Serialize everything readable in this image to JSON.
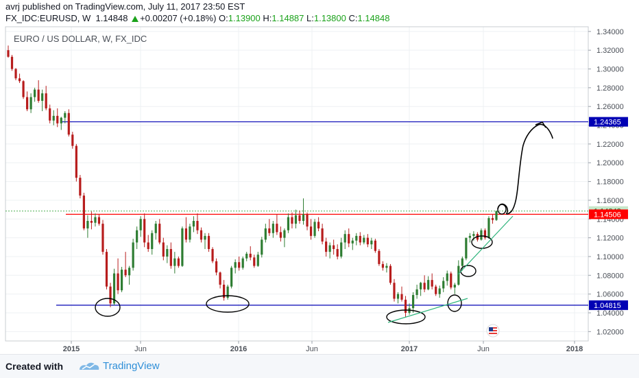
{
  "header": {
    "author": "avrj",
    "published_text": "published on TradingView.com, July 11, 2017 23:50 EST",
    "symbol": "FX_IDC:EURUSD, W",
    "last_price": "1.14848",
    "change": "+0.00207 (+0.18%)",
    "open_label": "O:",
    "open": "1.13900",
    "high_label": "H:",
    "high": "1.14887",
    "low_label": "L:",
    "low": "1.13800",
    "close_label": "C:",
    "close": "1.14848"
  },
  "footer": {
    "created_with": "Created with",
    "brand": "TradingView"
  },
  "chart_data": {
    "type": "candlestick",
    "title": "EURO / US DOLLAR, W, FX_IDC",
    "ylim": [
      1.01,
      1.345
    ],
    "y_ticks": [
      "1.34000",
      "1.32000",
      "1.30000",
      "1.28000",
      "1.26000",
      "1.24000",
      "1.22000",
      "1.20000",
      "1.18000",
      "1.16000",
      "1.14000",
      "1.12000",
      "1.10000",
      "1.08000",
      "1.06000",
      "1.04000",
      "1.02000"
    ],
    "x_ticks": [
      "2015",
      "Jun",
      "2016",
      "Jun",
      "2017",
      "Jun",
      "2018"
    ],
    "price_labels": [
      {
        "text": "1.24365",
        "value": 1.24365,
        "color": "#0000b4",
        "text_color": "#ffffff"
      },
      {
        "text": "1.14848",
        "value": 1.14848,
        "color": "#c8e6c9",
        "text_color": "#1b5e20"
      },
      {
        "text": "1.14506",
        "value": 1.14506,
        "color": "#ff0000",
        "text_color": "#ffffff"
      },
      {
        "text": "1.04815",
        "value": 1.04815,
        "color": "#0000b4",
        "text_color": "#ffffff"
      }
    ],
    "horizontal_lines": [
      {
        "value": 1.24365,
        "color": "#0000b4"
      },
      {
        "value": 1.14506,
        "color": "#ff0000"
      },
      {
        "value": 1.04815,
        "color": "#0000b4"
      }
    ],
    "colors": {
      "up": "#2e7d32",
      "down": "#b71c1c",
      "last_price_line": "#4caf50",
      "drawing": "#000000",
      "trendline": "#2bb37a"
    },
    "candles": [
      {
        "o": 1.32,
        "h": 1.325,
        "l": 1.312,
        "c": 1.313
      },
      {
        "o": 1.313,
        "h": 1.315,
        "l": 1.298,
        "c": 1.3
      },
      {
        "o": 1.3,
        "h": 1.301,
        "l": 1.288,
        "c": 1.29
      },
      {
        "o": 1.29,
        "h": 1.295,
        "l": 1.285,
        "c": 1.287
      },
      {
        "o": 1.287,
        "h": 1.288,
        "l": 1.268,
        "c": 1.27
      },
      {
        "o": 1.27,
        "h": 1.276,
        "l": 1.255,
        "c": 1.257
      },
      {
        "o": 1.257,
        "h": 1.274,
        "l": 1.253,
        "c": 1.27
      },
      {
        "o": 1.27,
        "h": 1.28,
        "l": 1.265,
        "c": 1.278
      },
      {
        "o": 1.278,
        "h": 1.288,
        "l": 1.264,
        "c": 1.266
      },
      {
        "o": 1.266,
        "h": 1.278,
        "l": 1.255,
        "c": 1.274
      },
      {
        "o": 1.274,
        "h": 1.282,
        "l": 1.256,
        "c": 1.258
      },
      {
        "o": 1.258,
        "h": 1.262,
        "l": 1.242,
        "c": 1.245
      },
      {
        "o": 1.245,
        "h": 1.256,
        "l": 1.24,
        "c": 1.25
      },
      {
        "o": 1.25,
        "h": 1.258,
        "l": 1.238,
        "c": 1.242
      },
      {
        "o": 1.242,
        "h": 1.249,
        "l": 1.235,
        "c": 1.248
      },
      {
        "o": 1.248,
        "h": 1.255,
        "l": 1.242,
        "c": 1.253
      },
      {
        "o": 1.253,
        "h": 1.257,
        "l": 1.228,
        "c": 1.23
      },
      {
        "o": 1.23,
        "h": 1.233,
        "l": 1.215,
        "c": 1.218
      },
      {
        "o": 1.218,
        "h": 1.22,
        "l": 1.18,
        "c": 1.184
      },
      {
        "o": 1.184,
        "h": 1.187,
        "l": 1.162,
        "c": 1.165
      },
      {
        "o": 1.165,
        "h": 1.168,
        "l": 1.128,
        "c": 1.13
      },
      {
        "o": 1.13,
        "h": 1.144,
        "l": 1.12,
        "c": 1.138
      },
      {
        "o": 1.138,
        "h": 1.148,
        "l": 1.129,
        "c": 1.136
      },
      {
        "o": 1.136,
        "h": 1.146,
        "l": 1.132,
        "c": 1.142
      },
      {
        "o": 1.142,
        "h": 1.145,
        "l": 1.133,
        "c": 1.135
      },
      {
        "o": 1.135,
        "h": 1.139,
        "l": 1.102,
        "c": 1.105
      },
      {
        "o": 1.105,
        "h": 1.108,
        "l": 1.065,
        "c": 1.068
      },
      {
        "o": 1.068,
        "h": 1.072,
        "l": 1.046,
        "c": 1.05
      },
      {
        "o": 1.05,
        "h": 1.087,
        "l": 1.048,
        "c": 1.082
      },
      {
        "o": 1.082,
        "h": 1.098,
        "l": 1.06,
        "c": 1.064
      },
      {
        "o": 1.064,
        "h": 1.089,
        "l": 1.062,
        "c": 1.086
      },
      {
        "o": 1.086,
        "h": 1.105,
        "l": 1.078,
        "c": 1.08
      },
      {
        "o": 1.08,
        "h": 1.09,
        "l": 1.07,
        "c": 1.088
      },
      {
        "o": 1.088,
        "h": 1.119,
        "l": 1.085,
        "c": 1.115
      },
      {
        "o": 1.115,
        "h": 1.132,
        "l": 1.108,
        "c": 1.128
      },
      {
        "o": 1.128,
        "h": 1.143,
        "l": 1.121,
        "c": 1.14
      },
      {
        "o": 1.14,
        "h": 1.146,
        "l": 1.11,
        "c": 1.115
      },
      {
        "o": 1.115,
        "h": 1.123,
        "l": 1.105,
        "c": 1.108
      },
      {
        "o": 1.108,
        "h": 1.128,
        "l": 1.102,
        "c": 1.125
      },
      {
        "o": 1.125,
        "h": 1.138,
        "l": 1.118,
        "c": 1.135
      },
      {
        "o": 1.135,
        "h": 1.14,
        "l": 1.113,
        "c": 1.115
      },
      {
        "o": 1.115,
        "h": 1.12,
        "l": 1.096,
        "c": 1.1
      },
      {
        "o": 1.1,
        "h": 1.112,
        "l": 1.093,
        "c": 1.108
      },
      {
        "o": 1.108,
        "h": 1.115,
        "l": 1.087,
        "c": 1.09
      },
      {
        "o": 1.09,
        "h": 1.105,
        "l": 1.082,
        "c": 1.098
      },
      {
        "o": 1.098,
        "h": 1.1,
        "l": 1.088,
        "c": 1.09
      },
      {
        "o": 1.09,
        "h": 1.132,
        "l": 1.089,
        "c": 1.13
      },
      {
        "o": 1.13,
        "h": 1.142,
        "l": 1.115,
        "c": 1.118
      },
      {
        "o": 1.118,
        "h": 1.135,
        "l": 1.115,
        "c": 1.132
      },
      {
        "o": 1.132,
        "h": 1.143,
        "l": 1.126,
        "c": 1.138
      },
      {
        "o": 1.138,
        "h": 1.146,
        "l": 1.124,
        "c": 1.128
      },
      {
        "o": 1.128,
        "h": 1.131,
        "l": 1.115,
        "c": 1.118
      },
      {
        "o": 1.118,
        "h": 1.125,
        "l": 1.108,
        "c": 1.122
      },
      {
        "o": 1.122,
        "h": 1.125,
        "l": 1.105,
        "c": 1.108
      },
      {
        "o": 1.108,
        "h": 1.11,
        "l": 1.093,
        "c": 1.095
      },
      {
        "o": 1.095,
        "h": 1.098,
        "l": 1.08,
        "c": 1.083
      },
      {
        "o": 1.083,
        "h": 1.084,
        "l": 1.066,
        "c": 1.07
      },
      {
        "o": 1.07,
        "h": 1.075,
        "l": 1.053,
        "c": 1.056
      },
      {
        "o": 1.056,
        "h": 1.07,
        "l": 1.054,
        "c": 1.068
      },
      {
        "o": 1.068,
        "h": 1.09,
        "l": 1.066,
        "c": 1.088
      },
      {
        "o": 1.088,
        "h": 1.097,
        "l": 1.082,
        "c": 1.094
      },
      {
        "o": 1.094,
        "h": 1.1,
        "l": 1.085,
        "c": 1.088
      },
      {
        "o": 1.088,
        "h": 1.1,
        "l": 1.086,
        "c": 1.098
      },
      {
        "o": 1.098,
        "h": 1.105,
        "l": 1.095,
        "c": 1.103
      },
      {
        "o": 1.103,
        "h": 1.111,
        "l": 1.096,
        "c": 1.099
      },
      {
        "o": 1.099,
        "h": 1.102,
        "l": 1.088,
        "c": 1.09
      },
      {
        "o": 1.09,
        "h": 1.105,
        "l": 1.089,
        "c": 1.102
      },
      {
        "o": 1.102,
        "h": 1.121,
        "l": 1.099,
        "c": 1.118
      },
      {
        "o": 1.118,
        "h": 1.135,
        "l": 1.115,
        "c": 1.13
      },
      {
        "o": 1.13,
        "h": 1.14,
        "l": 1.122,
        "c": 1.125
      },
      {
        "o": 1.125,
        "h": 1.138,
        "l": 1.12,
        "c": 1.135
      },
      {
        "o": 1.135,
        "h": 1.145,
        "l": 1.123,
        "c": 1.126
      },
      {
        "o": 1.126,
        "h": 1.132,
        "l": 1.116,
        "c": 1.12
      },
      {
        "o": 1.12,
        "h": 1.13,
        "l": 1.11,
        "c": 1.128
      },
      {
        "o": 1.128,
        "h": 1.146,
        "l": 1.125,
        "c": 1.142
      },
      {
        "o": 1.142,
        "h": 1.147,
        "l": 1.13,
        "c": 1.135
      },
      {
        "o": 1.135,
        "h": 1.15,
        "l": 1.13,
        "c": 1.144
      },
      {
        "o": 1.144,
        "h": 1.149,
        "l": 1.135,
        "c": 1.138
      },
      {
        "o": 1.138,
        "h": 1.162,
        "l": 1.134,
        "c": 1.145
      },
      {
        "o": 1.145,
        "h": 1.147,
        "l": 1.128,
        "c": 1.132
      },
      {
        "o": 1.132,
        "h": 1.14,
        "l": 1.118,
        "c": 1.122
      },
      {
        "o": 1.122,
        "h": 1.14,
        "l": 1.12,
        "c": 1.137
      },
      {
        "o": 1.137,
        "h": 1.142,
        "l": 1.127,
        "c": 1.13
      },
      {
        "o": 1.13,
        "h": 1.135,
        "l": 1.113,
        "c": 1.116
      },
      {
        "o": 1.116,
        "h": 1.12,
        "l": 1.1,
        "c": 1.105
      },
      {
        "o": 1.105,
        "h": 1.115,
        "l": 1.098,
        "c": 1.112
      },
      {
        "o": 1.112,
        "h": 1.118,
        "l": 1.102,
        "c": 1.108
      },
      {
        "o": 1.108,
        "h": 1.113,
        "l": 1.097,
        "c": 1.1
      },
      {
        "o": 1.1,
        "h": 1.12,
        "l": 1.098,
        "c": 1.115
      },
      {
        "o": 1.115,
        "h": 1.128,
        "l": 1.108,
        "c": 1.124
      },
      {
        "o": 1.124,
        "h": 1.13,
        "l": 1.11,
        "c": 1.114
      },
      {
        "o": 1.114,
        "h": 1.12,
        "l": 1.107,
        "c": 1.117
      },
      {
        "o": 1.117,
        "h": 1.125,
        "l": 1.112,
        "c": 1.122
      },
      {
        "o": 1.122,
        "h": 1.126,
        "l": 1.112,
        "c": 1.115
      },
      {
        "o": 1.115,
        "h": 1.123,
        "l": 1.113,
        "c": 1.12
      },
      {
        "o": 1.12,
        "h": 1.124,
        "l": 1.11,
        "c": 1.113
      },
      {
        "o": 1.113,
        "h": 1.12,
        "l": 1.108,
        "c": 1.117
      },
      {
        "o": 1.117,
        "h": 1.119,
        "l": 1.104,
        "c": 1.106
      },
      {
        "o": 1.106,
        "h": 1.108,
        "l": 1.09,
        "c": 1.092
      },
      {
        "o": 1.092,
        "h": 1.095,
        "l": 1.085,
        "c": 1.088
      },
      {
        "o": 1.088,
        "h": 1.093,
        "l": 1.083,
        "c": 1.09
      },
      {
        "o": 1.09,
        "h": 1.092,
        "l": 1.07,
        "c": 1.072
      },
      {
        "o": 1.072,
        "h": 1.076,
        "l": 1.052,
        "c": 1.055
      },
      {
        "o": 1.055,
        "h": 1.062,
        "l": 1.05,
        "c": 1.06
      },
      {
        "o": 1.06,
        "h": 1.068,
        "l": 1.052,
        "c": 1.054
      },
      {
        "o": 1.054,
        "h": 1.058,
        "l": 1.035,
        "c": 1.04
      },
      {
        "o": 1.04,
        "h": 1.05,
        "l": 1.038,
        "c": 1.045
      },
      {
        "o": 1.045,
        "h": 1.062,
        "l": 1.04,
        "c": 1.059
      },
      {
        "o": 1.059,
        "h": 1.07,
        "l": 1.055,
        "c": 1.065
      },
      {
        "o": 1.065,
        "h": 1.073,
        "l": 1.058,
        "c": 1.072
      },
      {
        "o": 1.072,
        "h": 1.08,
        "l": 1.062,
        "c": 1.065
      },
      {
        "o": 1.065,
        "h": 1.079,
        "l": 1.064,
        "c": 1.075
      },
      {
        "o": 1.075,
        "h": 1.082,
        "l": 1.065,
        "c": 1.068
      },
      {
        "o": 1.068,
        "h": 1.07,
        "l": 1.058,
        "c": 1.06
      },
      {
        "o": 1.06,
        "h": 1.069,
        "l": 1.056,
        "c": 1.066
      },
      {
        "o": 1.066,
        "h": 1.078,
        "l": 1.062,
        "c": 1.074
      },
      {
        "o": 1.074,
        "h": 1.085,
        "l": 1.069,
        "c": 1.082
      },
      {
        "o": 1.082,
        "h": 1.084,
        "l": 1.065,
        "c": 1.067
      },
      {
        "o": 1.067,
        "h": 1.072,
        "l": 1.06,
        "c": 1.07
      },
      {
        "o": 1.07,
        "h": 1.096,
        "l": 1.069,
        "c": 1.09
      },
      {
        "o": 1.09,
        "h": 1.1,
        "l": 1.085,
        "c": 1.098
      },
      {
        "o": 1.098,
        "h": 1.12,
        "l": 1.096,
        "c": 1.12
      },
      {
        "o": 1.12,
        "h": 1.125,
        "l": 1.115,
        "c": 1.122
      },
      {
        "o": 1.122,
        "h": 1.127,
        "l": 1.117,
        "c": 1.124
      },
      {
        "o": 1.124,
        "h": 1.126,
        "l": 1.116,
        "c": 1.118
      },
      {
        "o": 1.118,
        "h": 1.13,
        "l": 1.117,
        "c": 1.128
      },
      {
        "o": 1.128,
        "h": 1.13,
        "l": 1.118,
        "c": 1.12
      },
      {
        "o": 1.12,
        "h": 1.143,
        "l": 1.119,
        "c": 1.141
      },
      {
        "o": 1.141,
        "h": 1.145,
        "l": 1.135,
        "c": 1.139
      },
      {
        "o": 1.139,
        "h": 1.1489,
        "l": 1.138,
        "c": 1.1485
      }
    ]
  }
}
